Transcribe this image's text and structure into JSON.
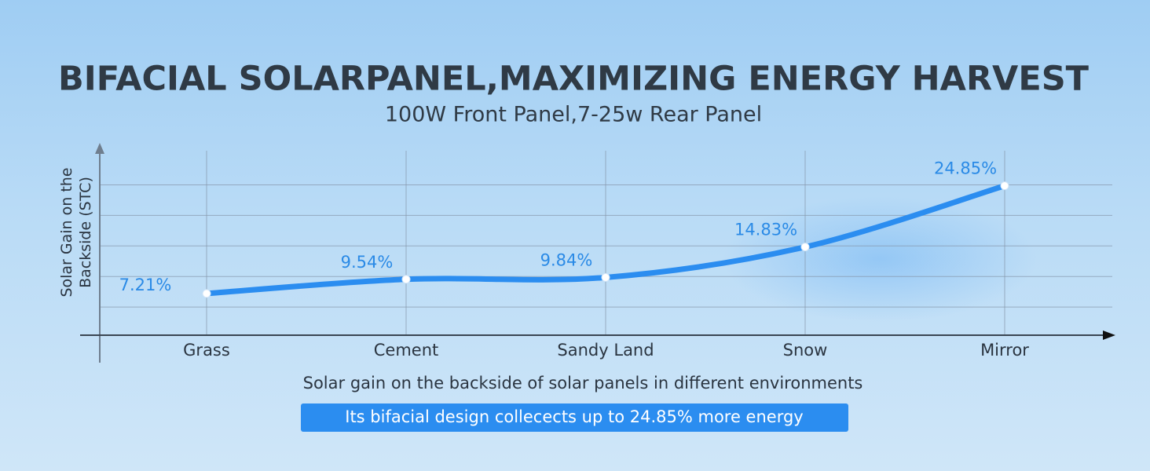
{
  "chart_data": {
    "type": "line",
    "title": "BIFACIAL SOLARPANEL,MAXIMIZING ENERGY HARVEST",
    "subtitle": "100W Front Panel,7-25w Rear Panel",
    "ylabel": "Solar Gain on the Backside (STC)",
    "xlabel": "Solar gain on the backside of solar panels in different environments",
    "annotation": "Its bifacial design collecects up to 24.85% more energy",
    "categories": [
      "Grass",
      "Cement",
      "Sandy Land",
      "Snow",
      "Mirror"
    ],
    "values": [
      7.21,
      9.54,
      9.84,
      14.83,
      24.85
    ],
    "value_labels": [
      "7.21%",
      "9.54%",
      "9.84%",
      "14.83%",
      "24.85%"
    ],
    "color": "#2b8df0",
    "ylim": [
      0,
      32
    ],
    "yticks": [
      5,
      10,
      15,
      20,
      25
    ],
    "grid": true
  }
}
